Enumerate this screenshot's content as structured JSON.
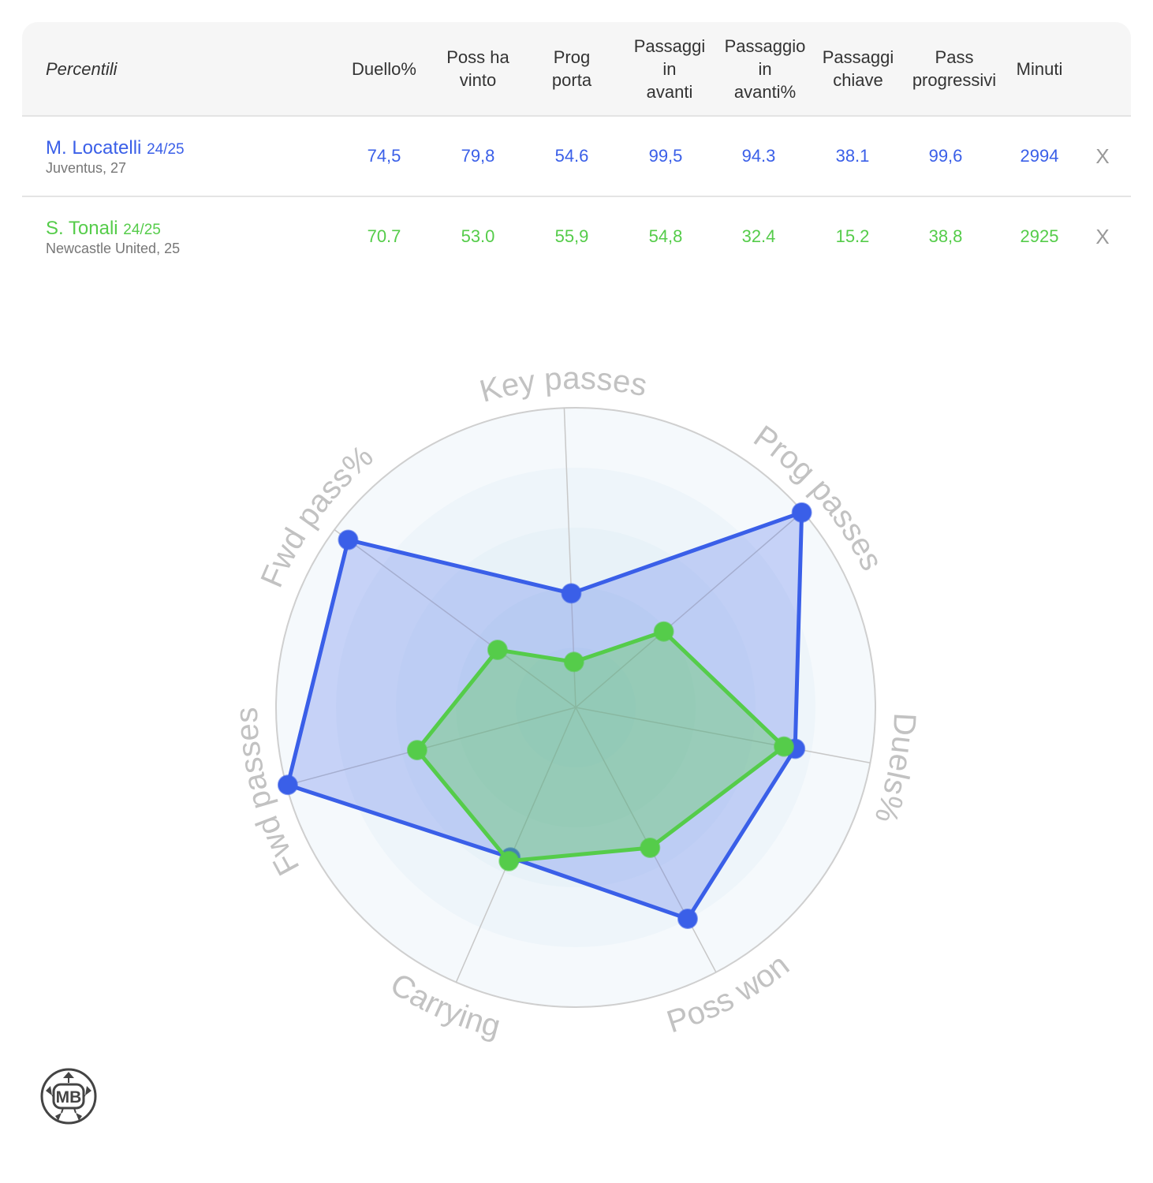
{
  "table": {
    "header_first": "Percentili",
    "columns": [
      {
        "lines": [
          "Duello%"
        ]
      },
      {
        "lines": [
          "Poss ha",
          "vinto"
        ]
      },
      {
        "lines": [
          "Prog",
          "porta"
        ]
      },
      {
        "lines": [
          "Passaggi",
          "in",
          "avanti"
        ]
      },
      {
        "lines": [
          "Passaggio",
          "in",
          "avanti%"
        ]
      },
      {
        "lines": [
          "Passaggi",
          "chiave"
        ]
      },
      {
        "lines": [
          "Pass",
          "progressivi"
        ]
      },
      {
        "lines": [
          "Minuti"
        ]
      }
    ],
    "players": [
      {
        "name": "M. Locatelli",
        "season": "24/25",
        "team": "Juventus, 27",
        "values": [
          "74,5",
          "79,8",
          "54.6",
          "99,5",
          "94.3",
          "38.1",
          "99,6",
          "2994"
        ],
        "remove": "X",
        "color": "#3a5fe8"
      },
      {
        "name": "S. Tonali",
        "season": "24/25",
        "team": "Newcastle United, 25",
        "values": [
          "70.7",
          "53.0",
          "55,9",
          "54,8",
          "32.4",
          "15.2",
          "38,8",
          "2925"
        ],
        "remove": "X",
        "color": "#55cc4a"
      }
    ]
  },
  "chart_data": {
    "type": "radar",
    "axes": [
      "Key passes",
      "Prog passes",
      "Duels%",
      "Poss won",
      "Carrying",
      "Fwd passes",
      "Fwd pass%"
    ],
    "range": [
      0,
      100
    ],
    "series": [
      {
        "name": "M. Locatelli",
        "values": [
          38.1,
          99.6,
          74.5,
          79.8,
          54.6,
          99.5,
          94.3
        ],
        "color": "#3a5fe8"
      },
      {
        "name": "S. Tonali",
        "values": [
          15.2,
          38.8,
          70.7,
          53.0,
          55.9,
          54.8,
          32.4
        ],
        "color": "#55cc4a"
      }
    ]
  },
  "logo": {
    "text": "MB"
  }
}
